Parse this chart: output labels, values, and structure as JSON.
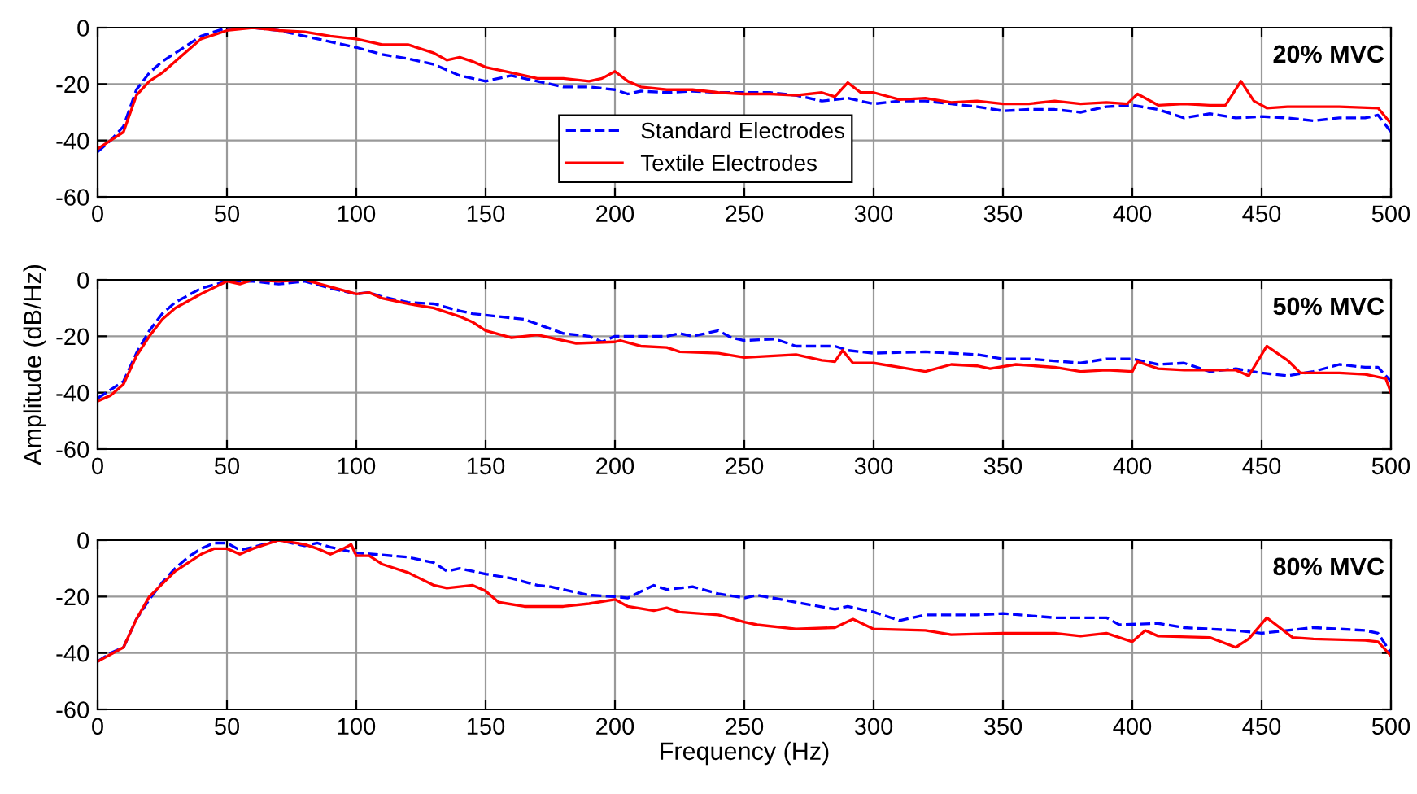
{
  "chart_data": [
    {
      "type": "line",
      "annotations": [
        "20% MVC"
      ],
      "xlim": [
        0,
        500
      ],
      "ylim": [
        -60,
        0
      ],
      "xticks": [
        0,
        50,
        100,
        150,
        200,
        250,
        300,
        350,
        400,
        450,
        500
      ],
      "yticks": [
        -60,
        -40,
        -20,
        0
      ],
      "grid": true,
      "legend": "bottom",
      "series": [
        {
          "name": "Standard Electrodes",
          "color": "#0000ff",
          "line_style": "dashed",
          "x": [
            0,
            5,
            10,
            15,
            20,
            25,
            30,
            40,
            50,
            60,
            70,
            80,
            90,
            100,
            110,
            120,
            130,
            140,
            150,
            160,
            170,
            180,
            190,
            200,
            205,
            210,
            220,
            230,
            240,
            250,
            260,
            270,
            280,
            290,
            300,
            310,
            320,
            330,
            340,
            350,
            360,
            370,
            380,
            390,
            400,
            410,
            420,
            430,
            440,
            450,
            460,
            470,
            480,
            490,
            495,
            500
          ],
          "values": [
            -44,
            -40,
            -35,
            -22,
            -16,
            -12,
            -9,
            -3,
            0,
            0,
            -1,
            -3,
            -5,
            -7,
            -9.5,
            -11,
            -13,
            -17,
            -19,
            -17,
            -19,
            -21,
            -21,
            -22,
            -23.5,
            -22.5,
            -23,
            -22.5,
            -23,
            -23,
            -23,
            -24,
            -26,
            -25,
            -27,
            -26,
            -26,
            -27,
            -28,
            -29.5,
            -29,
            -29,
            -30,
            -28,
            -27.5,
            -29,
            -32,
            -30.5,
            -32,
            -31.5,
            -32,
            -33,
            -32,
            -32,
            -31,
            -37
          ]
        },
        {
          "name": "Textile Electrodes",
          "color": "#ff0000",
          "line_style": "solid",
          "x": [
            0,
            5,
            10,
            15,
            20,
            25,
            30,
            40,
            50,
            60,
            70,
            80,
            90,
            100,
            110,
            120,
            130,
            135,
            140,
            145,
            150,
            160,
            170,
            180,
            190,
            195,
            200,
            205,
            210,
            220,
            230,
            240,
            250,
            260,
            270,
            280,
            285,
            290,
            295,
            300,
            310,
            320,
            330,
            340,
            350,
            360,
            370,
            380,
            390,
            398,
            402,
            410,
            420,
            430,
            436,
            442,
            447,
            452,
            460,
            480,
            495,
            500
          ],
          "values": [
            -43,
            -40,
            -37,
            -24,
            -19,
            -16,
            -12,
            -4,
            -1,
            0,
            -1,
            -1.5,
            -3,
            -4,
            -6,
            -6,
            -9,
            -11.5,
            -10.5,
            -12,
            -14,
            -16,
            -18,
            -18,
            -19,
            -18,
            -15.5,
            -19,
            -21,
            -22,
            -22,
            -23,
            -23.5,
            -23.5,
            -24,
            -23,
            -24.5,
            -19.5,
            -23,
            -23,
            -25.5,
            -25,
            -26.5,
            -26,
            -27,
            -27,
            -26,
            -27,
            -26.5,
            -27,
            -23.5,
            -27.5,
            -27,
            -27.5,
            -27.5,
            -19,
            -26,
            -28.5,
            -28,
            -28,
            -28.5,
            -34
          ]
        }
      ]
    },
    {
      "type": "line",
      "ylabel": "Amplitude (dB/Hz)",
      "annotations": [
        "50% MVC"
      ],
      "xlim": [
        0,
        500
      ],
      "ylim": [
        -60,
        0
      ],
      "xticks": [
        0,
        50,
        100,
        150,
        200,
        250,
        300,
        350,
        400,
        450,
        500
      ],
      "yticks": [
        -60,
        -40,
        -20,
        0
      ],
      "grid": true,
      "series": [
        {
          "color": "#0000ff",
          "line_style": "dashed",
          "x": [
            0,
            5,
            10,
            15,
            20,
            25,
            30,
            40,
            50,
            60,
            70,
            80,
            90,
            100,
            105,
            110,
            120,
            130,
            140,
            145,
            150,
            165,
            180,
            190,
            195,
            200,
            210,
            220,
            225,
            230,
            240,
            245,
            250,
            262,
            270,
            285,
            290,
            300,
            320,
            340,
            350,
            360,
            380,
            390,
            400,
            410,
            420,
            430,
            440,
            450,
            460,
            470,
            480,
            490,
            495,
            500
          ],
          "values": [
            -42,
            -39,
            -36,
            -26,
            -18,
            -12,
            -8,
            -3,
            -0.5,
            -0.5,
            -1.5,
            -0.5,
            -3,
            -5,
            -4.5,
            -6,
            -8,
            -8.5,
            -11,
            -12,
            -12.5,
            -14,
            -19,
            -20,
            -22,
            -20,
            -20,
            -20,
            -19,
            -20,
            -18,
            -20.5,
            -21.5,
            -21,
            -23.5,
            -23.5,
            -25,
            -26,
            -25.5,
            -26.5,
            -28,
            -28,
            -29.5,
            -28,
            -28,
            -30,
            -29.5,
            -32.5,
            -31.5,
            -33,
            -34,
            -32.5,
            -30,
            -31,
            -31,
            -36
          ]
        },
        {
          "color": "#ff0000",
          "line_style": "solid",
          "x": [
            0,
            5,
            10,
            15,
            20,
            25,
            30,
            40,
            50,
            55,
            60,
            70,
            80,
            90,
            100,
            105,
            110,
            120,
            130,
            140,
            145,
            150,
            160,
            170,
            185,
            200,
            202,
            210,
            220,
            225,
            240,
            250,
            260,
            270,
            280,
            285,
            288,
            292,
            300,
            310,
            320,
            330,
            340,
            345,
            355,
            370,
            380,
            390,
            400,
            402,
            410,
            420,
            440,
            445,
            452,
            460,
            465,
            480,
            490,
            498,
            500
          ],
          "values": [
            -43,
            -41,
            -37,
            -27,
            -20,
            -14,
            -10,
            -5,
            -0.5,
            -1.5,
            0,
            -0.5,
            0,
            -2.5,
            -5,
            -4.5,
            -6.5,
            -8.5,
            -10,
            -13,
            -15,
            -18,
            -20.5,
            -19.5,
            -22.5,
            -22,
            -21.5,
            -23.5,
            -24,
            -25.5,
            -26,
            -27.5,
            -27,
            -26.5,
            -28.5,
            -29,
            -25,
            -29.5,
            -29.5,
            -31,
            -32.5,
            -30,
            -30.5,
            -31.5,
            -30,
            -31,
            -32.5,
            -32,
            -32.5,
            -29,
            -31.5,
            -32,
            -32,
            -34,
            -23.5,
            -28.5,
            -33,
            -33,
            -33.5,
            -35,
            -40
          ]
        }
      ]
    },
    {
      "type": "line",
      "xlabel": "Frequency (Hz)",
      "annotations": [
        "80% MVC"
      ],
      "xlim": [
        0,
        500
      ],
      "ylim": [
        -60,
        0
      ],
      "xticks": [
        0,
        50,
        100,
        150,
        200,
        250,
        300,
        350,
        400,
        450,
        500
      ],
      "yticks": [
        -60,
        -40,
        -20,
        0
      ],
      "grid": true,
      "series": [
        {
          "color": "#0000ff",
          "line_style": "dashed",
          "x": [
            0,
            5,
            10,
            15,
            20,
            25,
            30,
            35,
            40,
            45,
            50,
            55,
            60,
            70,
            80,
            85,
            90,
            100,
            120,
            130,
            135,
            140,
            150,
            160,
            170,
            175,
            190,
            200,
            205,
            215,
            220,
            230,
            240,
            250,
            255,
            270,
            285,
            290,
            300,
            310,
            320,
            340,
            350,
            370,
            380,
            390,
            395,
            410,
            420,
            440,
            450,
            460,
            470,
            480,
            490,
            495,
            500
          ],
          "values": [
            -43,
            -40,
            -38,
            -28,
            -21,
            -15,
            -10,
            -6,
            -3,
            -1,
            -1,
            -3.5,
            -2.5,
            0,
            -2,
            -1,
            -2.5,
            -4.5,
            -6,
            -8,
            -11,
            -10,
            -12,
            -13.5,
            -16,
            -16.5,
            -19.5,
            -20,
            -20.5,
            -16,
            -17.5,
            -16.5,
            -19,
            -20.5,
            -19.5,
            -22,
            -24.5,
            -23.5,
            -25.5,
            -28.5,
            -26.5,
            -26.5,
            -26,
            -27.5,
            -27.5,
            -27.5,
            -30,
            -29.5,
            -31,
            -32,
            -33,
            -32,
            -31,
            -31.5,
            -32,
            -33,
            -40
          ]
        },
        {
          "color": "#ff0000",
          "line_style": "solid",
          "x": [
            0,
            10,
            15,
            20,
            30,
            40,
            45,
            50,
            55,
            60,
            70,
            80,
            85,
            90,
            95,
            98,
            100,
            105,
            110,
            120,
            130,
            135,
            145,
            150,
            155,
            165,
            180,
            190,
            200,
            205,
            215,
            220,
            225,
            240,
            250,
            255,
            270,
            285,
            292,
            300,
            320,
            330,
            350,
            370,
            380,
            390,
            400,
            405,
            410,
            430,
            440,
            445,
            452,
            462,
            470,
            490,
            495,
            500
          ],
          "values": [
            -43,
            -38,
            -28,
            -20,
            -11,
            -5,
            -3,
            -3,
            -5,
            -3,
            0,
            -1.5,
            -3,
            -5,
            -3,
            -1.5,
            -5.5,
            -5.5,
            -8.5,
            -11.5,
            -16,
            -17,
            -16,
            -18,
            -22,
            -23.5,
            -23.5,
            -22.5,
            -21,
            -23.5,
            -25,
            -24,
            -25.5,
            -26.5,
            -29,
            -30,
            -31.5,
            -31,
            -28,
            -31.5,
            -32,
            -33.5,
            -33,
            -33,
            -34,
            -33,
            -36,
            -32,
            -34,
            -34.5,
            -38,
            -35,
            -27.5,
            -34.5,
            -35,
            -35.5,
            -36,
            -41
          ]
        }
      ]
    }
  ]
}
